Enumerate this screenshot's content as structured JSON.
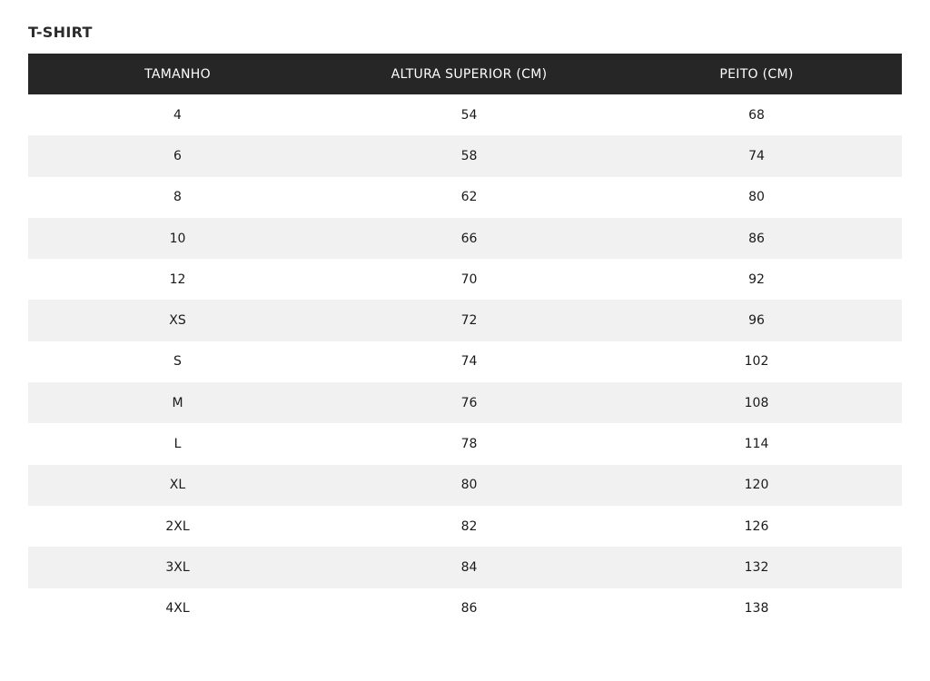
{
  "title": "T-SHIRT",
  "columns": [
    "TAMANHO",
    "ALTURA SUPERIOR (CM)",
    "PEITO (CM)"
  ],
  "rows": [
    [
      "4",
      "54",
      "68"
    ],
    [
      "6",
      "58",
      "74"
    ],
    [
      "8",
      "62",
      "80"
    ],
    [
      "10",
      "66",
      "86"
    ],
    [
      "12",
      "70",
      "92"
    ],
    [
      "XS",
      "72",
      "96"
    ],
    [
      "S",
      "74",
      "102"
    ],
    [
      "M",
      "76",
      "108"
    ],
    [
      "L",
      "78",
      "114"
    ],
    [
      "XL",
      "80",
      "120"
    ],
    [
      "2XL",
      "82",
      "126"
    ],
    [
      "3XL",
      "84",
      "132"
    ],
    [
      "4XL",
      "86",
      "138"
    ]
  ]
}
